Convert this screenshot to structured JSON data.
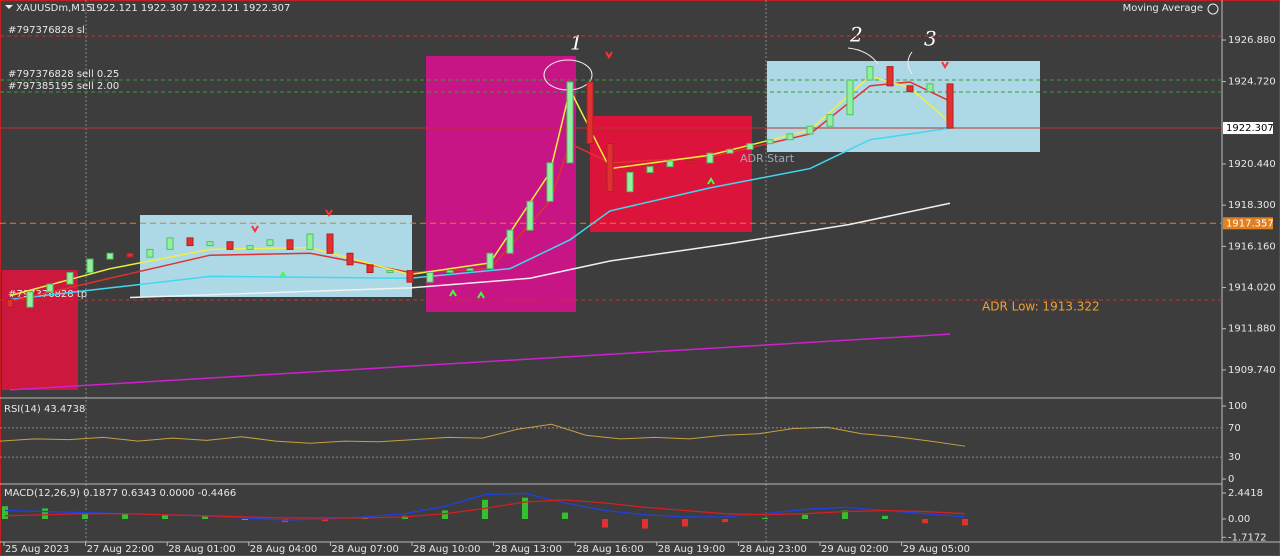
{
  "header": {
    "symbol": "XAUUSDm,M15",
    "quote": "1922.121 1922.307 1922.121 1922.307",
    "indicator": "Moving Average"
  },
  "main": {
    "ylim": [
      1908.28,
      1928.96
    ],
    "yticks": [
      {
        "value": 1926.88,
        "label": "1926.880"
      },
      {
        "value": 1924.72,
        "label": "1924.720"
      },
      {
        "value": 1920.44,
        "label": "1920.440"
      },
      {
        "value": 1918.3,
        "label": "1918.300"
      },
      {
        "value": 1916.16,
        "label": "1916.160"
      },
      {
        "value": 1914.02,
        "label": "1914.020"
      },
      {
        "value": 1911.88,
        "label": "1911.880"
      },
      {
        "value": 1909.74,
        "label": "1909.740"
      }
    ],
    "current_price": {
      "value": 1922.307,
      "label": "1922.307"
    },
    "level": {
      "value": 1917.357,
      "label": "1917.357"
    },
    "orders": [
      {
        "label": "#797376828 sl",
        "price": 1927.09,
        "color": "#c83030"
      },
      {
        "label": "#797376828 sell 0.25",
        "price": 1924.8,
        "color": "#3c9a3c"
      },
      {
        "label": "#797385195 sell 2.00",
        "price": 1924.18,
        "color": "#3c9a3c"
      },
      {
        "label": "#797376828 tp",
        "price": 1913.37,
        "color": "#c83030"
      }
    ],
    "adr_low": "ADR Low: 1913.322",
    "adr_start": "ADR Start",
    "annotations": [
      "1",
      "2",
      "3"
    ],
    "candles": {
      "opens": [
        1913.4,
        1913.0,
        1913.8,
        1914.2,
        1914.8,
        1915.5,
        1915.8,
        1915.6,
        1916.0,
        1916.6,
        1916.2,
        1916.4,
        1916.0,
        1916.2,
        1916.5,
        1916.0,
        1916.8,
        1915.8,
        1915.2,
        1914.8,
        1914.9,
        1914.3,
        1914.8,
        1914.9,
        1915.0,
        1915.8,
        1917.0,
        1918.5,
        1920.5,
        1924.7,
        1921.5,
        1919.0,
        1920.0,
        1920.3,
        1920.6,
        1920.5,
        1921.0,
        1921.2,
        1921.5,
        1921.7,
        1922.0,
        1922.4,
        1923.0,
        1924.8,
        1925.5,
        1924.5,
        1924.2,
        1924.6
      ],
      "closes": [
        1913.0,
        1913.8,
        1914.2,
        1914.8,
        1915.5,
        1915.8,
        1915.6,
        1916.0,
        1916.6,
        1916.2,
        1916.4,
        1916.0,
        1916.2,
        1916.5,
        1916.0,
        1916.8,
        1915.8,
        1915.2,
        1914.8,
        1914.9,
        1914.3,
        1914.8,
        1914.9,
        1915.0,
        1915.8,
        1917.0,
        1918.5,
        1920.5,
        1924.7,
        1921.5,
        1919.0,
        1920.0,
        1920.3,
        1920.6,
        1920.5,
        1921.0,
        1921.2,
        1921.5,
        1921.7,
        1922.0,
        1922.4,
        1923.0,
        1924.8,
        1925.5,
        1924.5,
        1924.2,
        1924.6,
        1922.3
      ]
    },
    "moving_averages": [
      {
        "color": "#f0f0f0",
        "x": [
          6,
          20,
          26,
          30,
          36,
          42,
          47
        ],
        "values": [
          1913.5,
          1914.0,
          1914.5,
          1915.4,
          1916.3,
          1917.3,
          1918.4
        ]
      },
      {
        "color": "#40d8f0",
        "x": [
          0,
          5,
          10,
          20,
          25,
          28,
          30,
          35,
          40,
          43,
          47
        ],
        "values": [
          1913.4,
          1914.0,
          1914.6,
          1914.5,
          1915.0,
          1916.5,
          1918.0,
          1919.2,
          1920.2,
          1921.7,
          1922.3
        ]
      },
      {
        "color": "#d020d0",
        "x": [
          0,
          47
        ],
        "values": [
          1908.7,
          1911.6
        ]
      },
      {
        "color": "#e03030",
        "x": [
          0,
          5,
          10,
          15,
          20,
          24,
          27,
          28,
          30,
          35,
          40,
          43,
          45,
          47
        ],
        "values": [
          1913.3,
          1914.5,
          1915.7,
          1915.8,
          1914.8,
          1915.0,
          1918.5,
          1921.5,
          1920.5,
          1920.8,
          1922.0,
          1924.5,
          1924.7,
          1923.7
        ]
      },
      {
        "color": "#f0f040",
        "x": [
          0,
          5,
          10,
          15,
          20,
          24,
          27,
          28,
          30,
          35,
          40,
          43,
          45,
          47
        ],
        "values": [
          1913.6,
          1915.0,
          1916.0,
          1916.1,
          1914.7,
          1915.3,
          1920.0,
          1924.3,
          1920.2,
          1920.9,
          1922.2,
          1925.0,
          1924.4,
          1922.6
        ]
      }
    ]
  },
  "rsi": {
    "label": "RSI(14) 43.4738",
    "ylim": [
      -6.8,
      111
    ],
    "yticks": [
      100,
      70,
      30,
      0
    ],
    "color": "#c8a040",
    "values": [
      52,
      55,
      54,
      57,
      52,
      56,
      53,
      58,
      52,
      49,
      52,
      51,
      54,
      57,
      56,
      68,
      75,
      60,
      55,
      57,
      55,
      60,
      62,
      69,
      71,
      62,
      58,
      52,
      45
    ]
  },
  "macd": {
    "label": "MACD(12,26,9) 0.1877 0.6343 0.0000 -0.4466",
    "ylim": [
      -2.16,
      3.1
    ],
    "yticks": [
      {
        "value": 2.4418,
        "label": "2.4418"
      },
      {
        "value": 0,
        "label": "0.00"
      },
      {
        "value": -1.7172,
        "label": "-1.7172"
      }
    ],
    "histogram": [
      1.2,
      1.0,
      0.6,
      0.5,
      0.4,
      0.3,
      0.0,
      -0.3,
      -0.2,
      0.1,
      0.3,
      0.8,
      1.8,
      2.0,
      0.6,
      -0.8,
      -0.9,
      -0.7,
      -0.3,
      0.1,
      0.4,
      0.8,
      0.3,
      -0.4,
      -0.6
    ],
    "macd_line": [
      0.8,
      0.7,
      0.6,
      0.5,
      0.4,
      0.3,
      0.1,
      -0.1,
      0.0,
      0.2,
      0.5,
      1.2,
      2.3,
      2.4,
      1.5,
      0.8,
      0.4,
      0.2,
      0.2,
      0.5,
      0.9,
      1.1,
      0.8,
      0.5,
      0.2
    ],
    "signal_line": [
      0.3,
      0.4,
      0.5,
      0.5,
      0.4,
      0.3,
      0.2,
      0.1,
      0.1,
      0.1,
      0.2,
      0.5,
      1.0,
      1.6,
      1.8,
      1.5,
      1.1,
      0.8,
      0.5,
      0.4,
      0.5,
      0.7,
      0.8,
      0.7,
      0.5
    ]
  },
  "time_labels": [
    "25 Aug 2023",
    "27 Aug 22:00",
    "28 Aug 01:00",
    "28 Aug 04:00",
    "28 Aug 07:00",
    "28 Aug 10:00",
    "28 Aug 13:00",
    "28 Aug 16:00",
    "28 Aug 19:00",
    "28 Aug 23:00",
    "29 Aug 02:00",
    "29 Aug 05:00"
  ]
}
